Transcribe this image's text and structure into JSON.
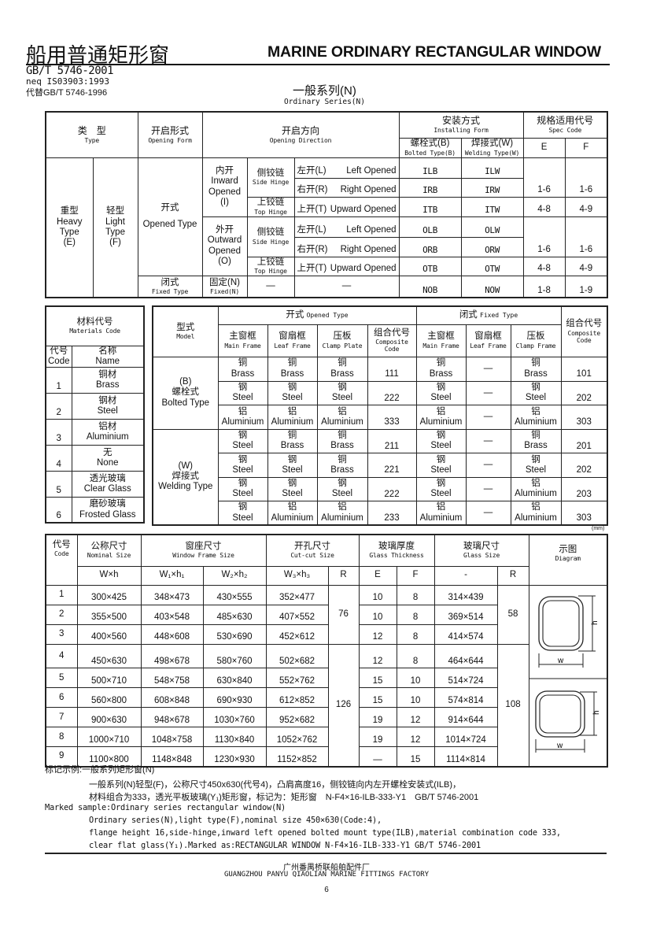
{
  "header": {
    "title_cn": "船用普通矩形窗",
    "title_en": "MARINE ORDINARY RECTANGULAR WINDOW",
    "std": "GB/T 5746-2001",
    "neq": "neq IS03903:1993",
    "replaces": "代替GB/T 5746-1996",
    "series_cn": "一般系列(N)",
    "series_en": "Ordinary Series(N)"
  },
  "type_table": {
    "type_cn": "类　型",
    "type_en": "Type",
    "form_cn": "开启形式",
    "form_en": "Opening Form",
    "dir_cn": "开启方向",
    "dir_en": "Opening Direction",
    "install_cn": "安装方式",
    "install_en": "Installing Form",
    "bolted_cn": "螺栓式(B)",
    "bolted_en": "Bolted Type(B)",
    "welding_cn": "焊接式(W)",
    "welding_en": "Welding Type(W)",
    "spec_cn": "规格适用代号",
    "spec_en": "Spec Code",
    "E": "E",
    "F": "F",
    "heavy": [
      "重型",
      "Heavy",
      "Type",
      "(E)"
    ],
    "light": [
      "轻型",
      "Light",
      "Type",
      "(F)"
    ],
    "opened_cn": "开式",
    "opened_en": "Opened Type",
    "fixed_cn": "闭式",
    "fixed_en": "Fixed Type",
    "inward": [
      "内开",
      "Inward",
      "Opened",
      "(I)"
    ],
    "outward": [
      "外开",
      "Outward",
      "Opened",
      "(O)"
    ],
    "side_cn": "侧铰链",
    "side_en": "Side Hinge",
    "top_cn": "上铰链",
    "top_en": "Top Hinge",
    "fixedn_cn": "固定(N)",
    "fixedn_en": "Fixed(N)",
    "dash": "—",
    "rows": [
      {
        "dir_cn": "左开(L)",
        "dir_en": "Left Opened",
        "bolted": "ILB",
        "welding": "ILW"
      },
      {
        "dir_cn": "右开(R)",
        "dir_en": "Right Opened",
        "bolted": "IRB",
        "welding": "IRW"
      },
      {
        "dir_cn": "上开(T)",
        "dir_en": "Upward Opened",
        "bolted": "ITB",
        "welding": "ITW"
      },
      {
        "dir_cn": "左开(L)",
        "dir_en": "Left Opened",
        "bolted": "OLB",
        "welding": "OLW"
      },
      {
        "dir_cn": "右开(R)",
        "dir_en": "Right Opened",
        "bolted": "ORB",
        "welding": "ORW"
      },
      {
        "dir_cn": "上开(T)",
        "dir_en": "Upward Opened",
        "bolted": "OTB",
        "welding": "OTW"
      },
      {
        "bolted": "NOB",
        "welding": "NOW"
      }
    ],
    "spec": [
      {
        "E": "1-6",
        "F": "1-6"
      },
      {
        "E": "4-8",
        "F": "4-9"
      },
      {
        "E": "1-6",
        "F": "1-6"
      },
      {
        "E": "4-8",
        "F": "4-9"
      },
      {
        "E": "1-8",
        "F": "1-9"
      }
    ]
  },
  "materials": {
    "title_cn": "材料代号",
    "title_en": "Materials Code",
    "code_cn": "代号",
    "code_en": "Code",
    "name_cn": "名称",
    "name_en": "Name",
    "rows": [
      {
        "code": "1",
        "cn": "铜材",
        "en": "Brass"
      },
      {
        "code": "2",
        "cn": "钢材",
        "en": "Steel"
      },
      {
        "code": "3",
        "cn": "铝材",
        "en": "Aluminium"
      },
      {
        "code": "4",
        "cn": "无",
        "en": "None"
      },
      {
        "code": "5",
        "cn": "透光玻璃",
        "en": "Clear Glass"
      },
      {
        "code": "6",
        "cn": "磨砂玻璃",
        "en": "Frosted Glass"
      }
    ]
  },
  "composition": {
    "model_cn": "型式",
    "model_en": "Model",
    "opened_cn": "开式",
    "opened_en": "Opened Type",
    "fixed_cn": "闭式",
    "fixed_en": "Fixed Type",
    "opened_cols": [
      {
        "cn": "主窗框",
        "en": "Main Frame"
      },
      {
        "cn": "窗扇框",
        "en": "Leaf Frame"
      },
      {
        "cn": "压板",
        "en": "Clamp Plate"
      },
      {
        "cn": "组合代号",
        "en": "Composite Code"
      }
    ],
    "fixed_cols": [
      {
        "cn": "主窗框",
        "en": "Main Frame"
      },
      {
        "cn": "窗扇框",
        "en": "Leaf Frame"
      },
      {
        "cn": "压板",
        "en": "Clamp Frame"
      },
      {
        "cn": "组合代号",
        "en": "Composite Code"
      }
    ],
    "bolted": [
      "(B)",
      "螺栓式",
      "Bolted Type"
    ],
    "welding": [
      "(W)",
      "焊接式",
      "Welding Type"
    ],
    "dash": "—",
    "rows": [
      {
        "o": [
          [
            "铜",
            "Brass"
          ],
          [
            "铜",
            "Brass"
          ],
          [
            "铜",
            "Brass"
          ]
        ],
        "oc": "111",
        "f": [
          [
            "铜",
            "Brass"
          ],
          [
            "铜",
            "Brass"
          ]
        ],
        "fc": "101"
      },
      {
        "o": [
          [
            "钢",
            "Steel"
          ],
          [
            "钢",
            "Steel"
          ],
          [
            "钢",
            "Steel"
          ]
        ],
        "oc": "222",
        "f": [
          [
            "钢",
            "Steel"
          ],
          [
            "钢",
            "Steel"
          ]
        ],
        "fc": "202"
      },
      {
        "o": [
          [
            "铝",
            "Aluminium"
          ],
          [
            "铝",
            "Aluminium"
          ],
          [
            "铝",
            "Aluminium"
          ]
        ],
        "oc": "333",
        "f": [
          [
            "铝",
            "Aluminium"
          ],
          [
            "铝",
            "Aluminium"
          ]
        ],
        "fc": "303"
      },
      {
        "o": [
          [
            "钢",
            "Steel"
          ],
          [
            "铜",
            "Brass"
          ],
          [
            "铜",
            "Brass"
          ]
        ],
        "oc": "211",
        "f": [
          [
            "钢",
            "Steel"
          ],
          [
            "铜",
            "Brass"
          ]
        ],
        "fc": "201"
      },
      {
        "o": [
          [
            "钢",
            "Steel"
          ],
          [
            "钢",
            "Steel"
          ],
          [
            "铜",
            "Brass"
          ]
        ],
        "oc": "221",
        "f": [
          [
            "钢",
            "Steel"
          ],
          [
            "钢",
            "Steel"
          ]
        ],
        "fc": "202"
      },
      {
        "o": [
          [
            "钢",
            "Steel"
          ],
          [
            "钢",
            "Steel"
          ],
          [
            "钢",
            "Steel"
          ]
        ],
        "oc": "222",
        "f": [
          [
            "钢",
            "Steel"
          ],
          [
            "铝",
            "Aluminium"
          ]
        ],
        "fc": "203"
      },
      {
        "o": [
          [
            "钢",
            "Steel"
          ],
          [
            "铝",
            "Aluminium"
          ],
          [
            "铝",
            "Aluminium"
          ]
        ],
        "oc": "233",
        "f": [
          [
            "铝",
            "Aluminium"
          ],
          [
            "铝",
            "Aluminium"
          ]
        ],
        "fc": "303"
      }
    ],
    "unit": "(mm)"
  },
  "sizes": {
    "code_cn": "代号",
    "code_en": "Code",
    "nominal_cn": "公称尺寸",
    "nominal_en": "Nominal Size",
    "frame_cn": "窗座尺寸",
    "frame_en": "Window Frame Size",
    "cutout_cn": "开孔尺寸",
    "cutout_en": "Cut-cut Size",
    "thick_cn": "玻璃厚度",
    "thick_en": "Glass Thickness",
    "glass_cn": "玻璃尺寸",
    "glass_en": "Glass Size",
    "diagram_cn": "示图",
    "diagram_en": "Diagram",
    "sub": [
      "W×h",
      "W₁×h₁",
      "W₂×h₂",
      "W₃×h₃",
      "R",
      "E",
      "F",
      "-",
      "R"
    ],
    "cut_r": [
      "76",
      "126"
    ],
    "glass_r": [
      "58",
      "108"
    ],
    "diagram_w": "w",
    "diagram_h": "h",
    "rows": [
      {
        "code": "1",
        "nom": "300×425",
        "f1": "348×473",
        "f2": "430×555",
        "cut": "352×477",
        "E": "10",
        "F": "8",
        "glass": "314×439"
      },
      {
        "code": "2",
        "nom": "355×500",
        "f1": "403×548",
        "f2": "485×630",
        "cut": "407×552",
        "E": "10",
        "F": "8",
        "glass": "369×514"
      },
      {
        "code": "3",
        "nom": "400×560",
        "f1": "448×608",
        "f2": "530×690",
        "cut": "452×612",
        "E": "12",
        "F": "8",
        "glass": "414×574"
      },
      {
        "code": "4",
        "nom": "450×630",
        "f1": "498×678",
        "f2": "580×760",
        "cut": "502×682",
        "E": "12",
        "F": "8",
        "glass": "464×644"
      },
      {
        "code": "5",
        "nom": "500×710",
        "f1": "548×758",
        "f2": "630×840",
        "cut": "552×762",
        "E": "15",
        "F": "10",
        "glass": "514×724"
      },
      {
        "code": "6",
        "nom": "560×800",
        "f1": "608×848",
        "f2": "690×930",
        "cut": "612×852",
        "E": "15",
        "F": "10",
        "glass": "574×814"
      },
      {
        "code": "7",
        "nom": "900×630",
        "f1": "948×678",
        "f2": "1030×760",
        "cut": "952×682",
        "E": "19",
        "F": "12",
        "glass": "914×644"
      },
      {
        "code": "8",
        "nom": "1000×710",
        "f1": "1048×758",
        "f2": "1130×840",
        "cut": "1052×762",
        "E": "19",
        "F": "12",
        "glass": "1014×724"
      },
      {
        "code": "9",
        "nom": "1100×800",
        "f1": "1148×848",
        "f2": "1230×930",
        "cut": "1152×852",
        "E": "—",
        "F": "15",
        "glass": "1114×814"
      }
    ]
  },
  "notes": {
    "cn_title": "标记示例:一般系列矩形窗(N)",
    "cn_1": "一般系列(N)轻型(F)，公称尺寸450x630(代号4)，凸肩高度16，侧铰链向内左开螺栓安装式(ILB)，",
    "cn_2": "材料组合为333，透光平板玻璃(Y₁)矩形窗，标记为：矩形窗　N-F4×16-ILB-333-Y1　GB/T 5746-2001",
    "en_title": "Marked sample:Ordinary series rectangular window(N)",
    "en_1": "Ordinary series(N),light type(F),nominal size 450×630(Code:4),",
    "en_2": "flange height 16,side-hinge,inward left opened bolted mount type(ILB),material combination code 333,",
    "en_3": "clear flat glass(Y₁).Marked as:RECTANGULAR WINDOW  N-F4×16-ILB-333-Y1  GB/T 5746-2001"
  },
  "footer": {
    "company_cn": "广州番禺桥联船舶配件厂",
    "company_en": "GUANGZHOU PANYU QIAOLIAN MARINE FITTINGS FACTORY",
    "page": "6"
  }
}
